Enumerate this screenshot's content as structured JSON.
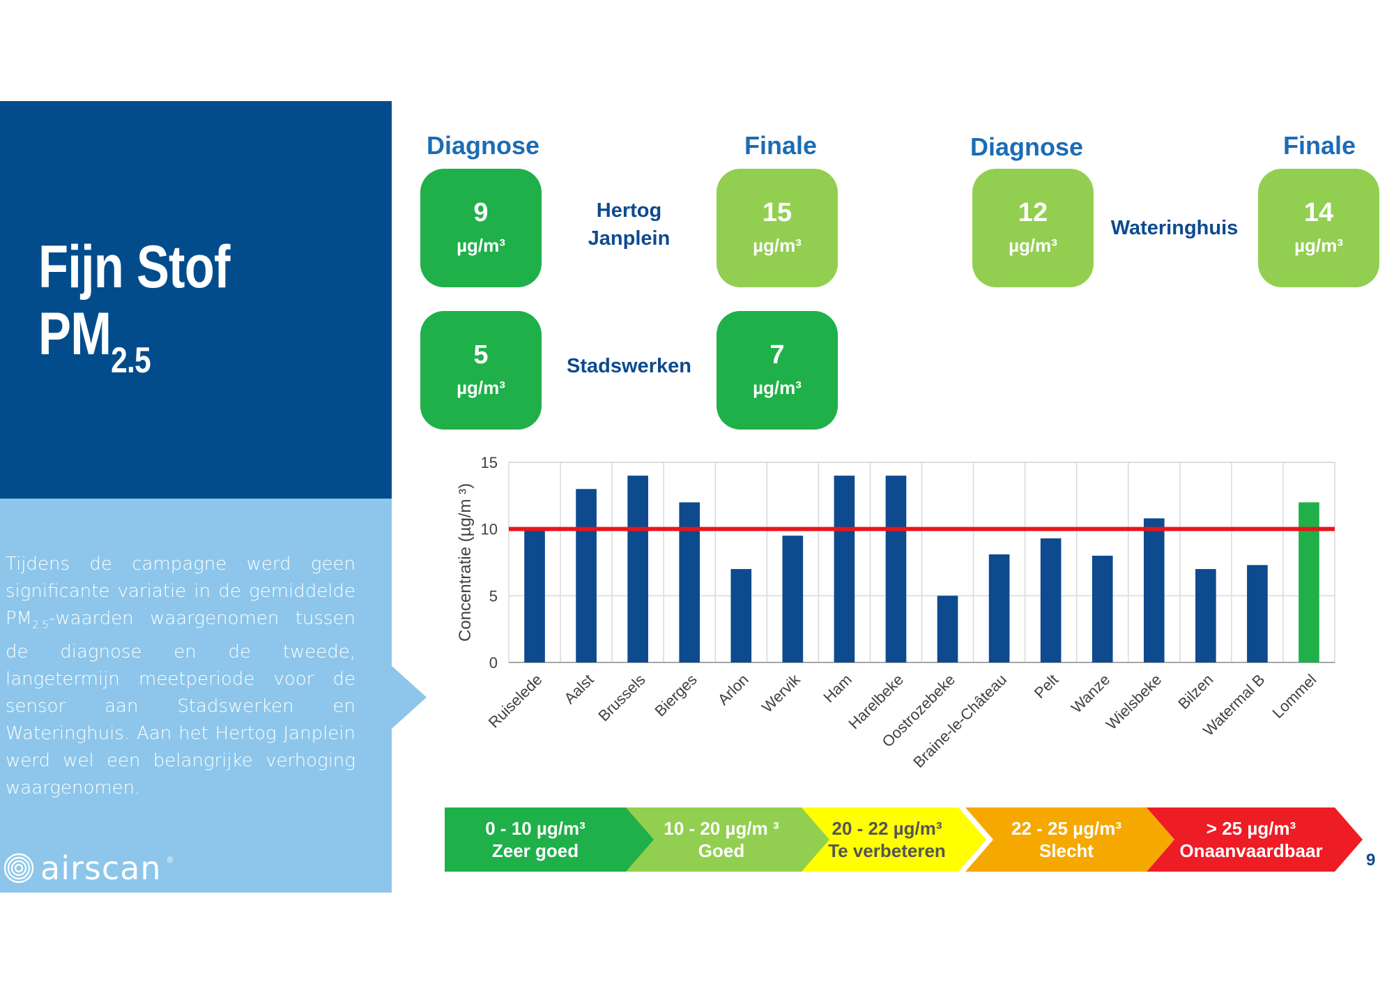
{
  "title": {
    "line1": "Fijn Stof",
    "line2": "PM",
    "sub": "2.5"
  },
  "description": {
    "part1": "Tijdens de campagne werd geen significante variatie in de gemiddelde PM",
    "sub": "2.5",
    "part2": "-waarden waargenomen tussen de diagnose en de tweede, langetermijn meetperiode voor de sensor aan Stadswerken en Wateringhuis. Aan het Hertog Janplein werd wel een belangrijke verhoging waargenomen."
  },
  "logo": {
    "text": "airscan",
    "mark": "®"
  },
  "headers": {
    "diagnose": "Diagnose",
    "finale": "Finale"
  },
  "unit": "µg/m³",
  "sites": {
    "hertog": {
      "name_line1": "Hertog",
      "name_line2": "Janplein",
      "diagnose": "9",
      "finale": "15"
    },
    "stadswerken": {
      "name": "Stadswerken",
      "diagnose": "5",
      "finale": "7"
    },
    "wateringhuis": {
      "name": "Wateringhuis",
      "diagnose": "12",
      "finale": "14"
    }
  },
  "colors": {
    "dark_green": "#1fb04a",
    "light_green": "#92cf50",
    "bar_blue": "#0d4a8e",
    "bar_highlight": "#1fb04a",
    "limit_line": "#e8161b"
  },
  "chart_data": {
    "type": "bar",
    "categories": [
      "Ruiselede",
      "Aalst",
      "Brussels",
      "Bierges",
      "Arlon",
      "Wervik",
      "Ham",
      "Harelbeke",
      "Oostrozebeke",
      "Braine-le-Château",
      "Pelt",
      "Wanze",
      "Wielsbeke",
      "Bilzen",
      "Watermal B",
      "Lommel"
    ],
    "values": [
      10,
      13,
      14,
      12,
      7,
      9.5,
      14,
      14,
      5,
      8.1,
      9.3,
      8,
      10.8,
      7,
      7.3,
      12
    ],
    "highlight_category": "Lommel",
    "ylabel": "Concentratie (µg/m ³)",
    "ylim": [
      0,
      15
    ],
    "yticks": [
      "0",
      "5",
      "10",
      "15"
    ],
    "reference_line": 10,
    "grid": true
  },
  "scale": [
    {
      "range": "0 - 10 µg/m³",
      "label": "Zeer goed",
      "color": "#1fb04a"
    },
    {
      "range": "10 - 20 µg/m ³",
      "label": "Goed",
      "color": "#92cf50"
    },
    {
      "range": "20 - 22 µg/m³",
      "label": "Te verbeteren",
      "color": "#ffff00"
    },
    {
      "range": "22 - 25 µg/m³",
      "label": "Slecht",
      "color": "#f5a800"
    },
    {
      "range": "> 25 µg/m³",
      "label": "Onaanvaardbaar",
      "color": "#ee1c25"
    }
  ],
  "page_number": "9"
}
